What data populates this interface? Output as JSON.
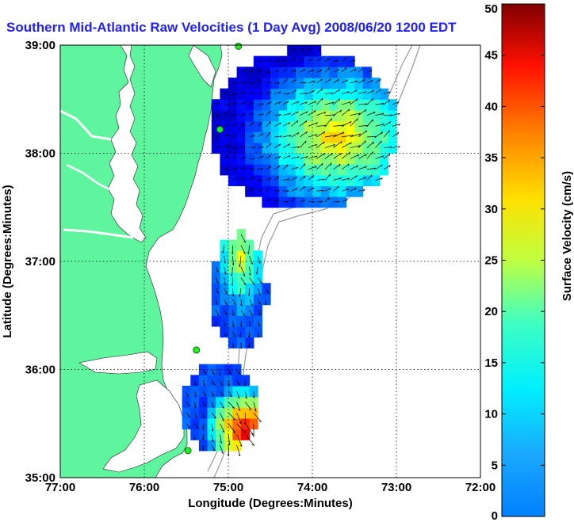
{
  "title": "Southern Mid-Atlantic Raw Velocities (1 Day Avg) 2008/06/20 1200 EDT",
  "colors": {
    "land": "#5ef59e",
    "water": "#ffffff",
    "title": "#1f1fff",
    "isobath": "#999999",
    "station": "#22ee22"
  },
  "chart_data": {
    "type": "heatmap",
    "title": "Southern Mid-Atlantic Raw Velocities (1 Day Avg) 2008/06/20 1200 EDT",
    "xlabel": "Longitude (Degrees:Minutes)",
    "ylabel": "Latitude (Degrees:Minutes)",
    "x_ticks": [
      "77:00",
      "76:00",
      "75:00",
      "74:00",
      "73:00",
      "72:00"
    ],
    "y_ticks": [
      "39:00",
      "38:00",
      "37:00",
      "36:00",
      "35:00"
    ],
    "xlim": [
      -77,
      -72
    ],
    "ylim": [
      35,
      39
    ],
    "grid": true,
    "colorbar": {
      "label": "Surface Velocity (cm/s)",
      "range": [
        0,
        50
      ],
      "ticks": [
        "50",
        "45",
        "40",
        "35",
        "30",
        "25",
        "20",
        "15",
        "10",
        "5",
        "0"
      ],
      "colormap": "jet"
    },
    "stations": [
      {
        "lon": -74.88,
        "lat": 38.99
      },
      {
        "lon": -75.1,
        "lat": 38.22
      },
      {
        "lon": -75.38,
        "lat": 36.18
      },
      {
        "lon": -75.48,
        "lat": 35.25
      }
    ],
    "regions": [
      {
        "lon0": -75.2,
        "lon1": -73.0,
        "lat0": 37.5,
        "lat1": 38.95,
        "vmin": 5,
        "vmax": 35,
        "peak_lon": -73.75,
        "peak_lat": 38.1,
        "u": 0.7,
        "v": 0.35
      },
      {
        "lon0": -75.2,
        "lon1": -74.55,
        "lat0": 36.2,
        "lat1": 37.25,
        "vmin": 10,
        "vmax": 30,
        "peak_lon": -74.9,
        "peak_lat": 37.0,
        "u": 0.15,
        "v": -0.6
      },
      {
        "lon0": -75.55,
        "lon1": -74.65,
        "lat0": 35.25,
        "lat1": 36.05,
        "vmin": 10,
        "vmax": 48,
        "peak_lon": -74.85,
        "peak_lat": 35.4,
        "u": 0.3,
        "v": -0.7
      }
    ]
  }
}
